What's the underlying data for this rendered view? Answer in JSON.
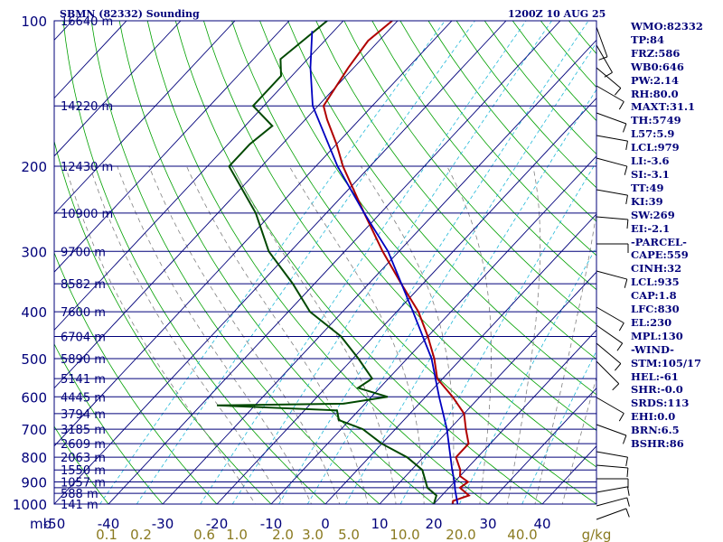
{
  "header": {
    "title": "SBMN (82332) Sounding",
    "time": "1200Z 10 AUG 25"
  },
  "stats": [
    "WMO:82332",
    "TP:84",
    "FRZ:586",
    "WB0:646",
    "PW:2.14",
    "RH:80.0",
    "MAXT:31.1",
    "TH:5749",
    "L57:5.9",
    "LCL:979",
    "LI:-3.6",
    "SI:-3.1",
    "TT:49",
    "KI:39",
    "SW:269",
    "EI:-2.1",
    "-PARCEL-",
    "CAPE:559",
    "CINH:32",
    "LCL:935",
    "CAP:1.8",
    "LFC:830",
    "EL:230",
    "MPL:130",
    "-WIND-",
    "STM:105/17",
    "HEL:-61",
    "SHR:-0.0",
    "SRDS:113",
    "EHI:0.0",
    "BRN:6.5",
    "BSHR:86"
  ],
  "colors": {
    "isobar": "#00007a",
    "isotherm": "#00007a",
    "dry_adiabat": "#00a000",
    "mixing_ratio": "#20b8d8",
    "moist_adiabat": "#808080",
    "temperature": "#b00000",
    "dewpoint": "#004800",
    "parcel": "#0000c0",
    "text": "#00007a",
    "mixing_label": "#8a7a20"
  },
  "chart_data": {
    "type": "line",
    "title": "SBMN (82332) Sounding",
    "xlabel": "",
    "ylabel": "mb",
    "x_ticks": [
      -50,
      -40,
      -30,
      -20,
      -10,
      0,
      10,
      20,
      30,
      40
    ],
    "pressure_ticks": [
      100,
      200,
      300,
      400,
      500,
      600,
      700,
      800,
      900,
      1000
    ],
    "pressure_levels": [
      100,
      150,
      200,
      250,
      300,
      350,
      400,
      450,
      500,
      550,
      600,
      650,
      700,
      750,
      800,
      850,
      900,
      925,
      950,
      1000
    ],
    "height_labels": [
      {
        "p": 100,
        "label": "16640 m"
      },
      {
        "p": 150,
        "label": "14220 m"
      },
      {
        "p": 200,
        "label": "12430 m"
      },
      {
        "p": 250,
        "label": "10900 m"
      },
      {
        "p": 300,
        "label": "9700 m"
      },
      {
        "p": 350,
        "label": "8582 m"
      },
      {
        "p": 400,
        "label": "7600 m"
      },
      {
        "p": 450,
        "label": "6704 m"
      },
      {
        "p": 500,
        "label": "5890 m"
      },
      {
        "p": 550,
        "label": "5141 m"
      },
      {
        "p": 600,
        "label": "4445 m"
      },
      {
        "p": 650,
        "label": "3794 m"
      },
      {
        "p": 700,
        "label": "3185 m"
      },
      {
        "p": 750,
        "label": "2609 m"
      },
      {
        "p": 800,
        "label": "2063 m"
      },
      {
        "p": 850,
        "label": "1550 m"
      },
      {
        "p": 900,
        "label": "1057 m"
      },
      {
        "p": 950,
        "label": "588 m"
      },
      {
        "p": 1000,
        "label": "141 m"
      }
    ],
    "mixing_ratio_labels": [
      "0.1",
      "0.2",
      "0.6",
      "1.0",
      "2.0",
      "3.0",
      "5.0",
      "10.0",
      "20.0",
      "40.0",
      "g/kg"
    ],
    "mixing_ratio_values": [
      0.1,
      0.2,
      0.6,
      1.0,
      2.0,
      3.0,
      5.0,
      10.0,
      20.0,
      40.0
    ],
    "series": [
      {
        "key": "temperature",
        "values": [
          [
            1000,
            23.5
          ],
          [
            985,
            23
          ],
          [
            960,
            25
          ],
          [
            925,
            22
          ],
          [
            900,
            22.5
          ],
          [
            875,
            20
          ],
          [
            850,
            19
          ],
          [
            800,
            16
          ],
          [
            750,
            16
          ],
          [
            700,
            13
          ],
          [
            650,
            10
          ],
          [
            600,
            5
          ],
          [
            550,
            -1
          ],
          [
            500,
            -5
          ],
          [
            450,
            -10
          ],
          [
            400,
            -16
          ],
          [
            350,
            -24
          ],
          [
            300,
            -33
          ],
          [
            250,
            -43
          ],
          [
            200,
            -55
          ],
          [
            180,
            -60
          ],
          [
            160,
            -66
          ],
          [
            150,
            -69
          ],
          [
            125,
            -71
          ],
          [
            110,
            -72
          ],
          [
            100,
            -71
          ]
        ]
      },
      {
        "key": "dewpoint",
        "values": [
          [
            1000,
            20
          ],
          [
            960,
            19
          ],
          [
            925,
            16
          ],
          [
            850,
            12
          ],
          [
            800,
            7
          ],
          [
            750,
            0
          ],
          [
            700,
            -6
          ],
          [
            670,
            -12
          ],
          [
            640,
            -14
          ],
          [
            625,
            -37
          ],
          [
            620,
            -14
          ],
          [
            600,
            -7
          ],
          [
            575,
            -14
          ],
          [
            550,
            -13
          ],
          [
            500,
            -19
          ],
          [
            450,
            -26
          ],
          [
            400,
            -36
          ],
          [
            350,
            -44
          ],
          [
            300,
            -54
          ],
          [
            250,
            -63
          ],
          [
            200,
            -76
          ],
          [
            180,
            -76
          ],
          [
            165,
            -75
          ],
          [
            150,
            -82
          ],
          [
            130,
            -82
          ],
          [
            120,
            -85
          ],
          [
            100,
            -83
          ]
        ]
      },
      {
        "key": "parcel",
        "values": [
          [
            1000,
            24.4
          ],
          [
            935,
            21.5
          ],
          [
            900,
            20
          ],
          [
            850,
            17.5
          ],
          [
            800,
            15
          ],
          [
            700,
            9.5
          ],
          [
            600,
            2.5
          ],
          [
            500,
            -5.5
          ],
          [
            400,
            -17
          ],
          [
            300,
            -32
          ],
          [
            250,
            -43
          ],
          [
            200,
            -56
          ],
          [
            150,
            -71
          ],
          [
            125,
            -78
          ],
          [
            105,
            -84
          ]
        ]
      }
    ]
  }
}
